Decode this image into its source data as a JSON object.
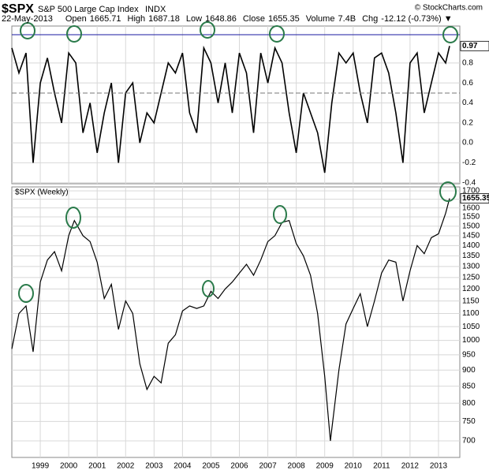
{
  "header": {
    "symbol": "$SPX",
    "name": "S&P 500 Large Cap Index",
    "exchange": "INDX",
    "date": "22-May-2013",
    "credit": "© StockCharts.com",
    "fields": [
      {
        "label": "Open",
        "value": 1665.71
      },
      {
        "label": "High",
        "value": 1687.18
      },
      {
        "label": "Low",
        "value": 1648.86
      },
      {
        "label": "Close",
        "value": 1655.35
      },
      {
        "label": "Volume",
        "value": "7.4B"
      },
      {
        "label": "Chg",
        "value": "-12.12 (-0.73%) ▼"
      }
    ]
  },
  "chart_data": [
    {
      "type": "line",
      "color": "#000000",
      "grid": true,
      "x": [
        1998.0,
        1998.25,
        1998.5,
        1998.75,
        1999.0,
        1999.25,
        1999.5,
        1999.75,
        2000.0,
        2000.25,
        2000.5,
        2000.75,
        2001.0,
        2001.25,
        2001.5,
        2001.75,
        2002.0,
        2002.25,
        2002.5,
        2002.75,
        2003.0,
        2003.25,
        2003.5,
        2003.75,
        2004.0,
        2004.25,
        2004.5,
        2004.75,
        2005.0,
        2005.25,
        2005.5,
        2005.75,
        2006.0,
        2006.25,
        2006.5,
        2006.75,
        2007.0,
        2007.25,
        2007.5,
        2007.75,
        2008.0,
        2008.25,
        2008.5,
        2008.75,
        2009.0,
        2009.25,
        2009.5,
        2009.75,
        2010.0,
        2010.25,
        2010.5,
        2010.75,
        2011.0,
        2011.25,
        2011.5,
        2011.75,
        2012.0,
        2012.25,
        2012.5,
        2012.75,
        2013.0,
        2013.25,
        2013.39
      ],
      "values": [
        0.95,
        0.7,
        0.9,
        -0.2,
        0.6,
        0.85,
        0.5,
        0.2,
        0.9,
        0.8,
        0.1,
        0.4,
        -0.1,
        0.3,
        0.6,
        -0.2,
        0.5,
        0.6,
        0.0,
        0.3,
        0.2,
        0.5,
        0.8,
        0.7,
        0.9,
        0.3,
        0.1,
        0.95,
        0.8,
        0.4,
        0.8,
        0.3,
        0.9,
        0.7,
        0.1,
        0.9,
        0.6,
        0.95,
        0.8,
        0.3,
        -0.1,
        0.5,
        0.3,
        0.1,
        -0.3,
        0.4,
        0.9,
        0.8,
        0.9,
        0.5,
        0.2,
        0.85,
        0.9,
        0.7,
        0.3,
        -0.2,
        0.8,
        0.9,
        0.3,
        0.6,
        0.9,
        0.8,
        0.97
      ],
      "xlim": [
        1998.0,
        2013.75
      ],
      "xticks": [
        1999,
        2000,
        2001,
        2002,
        2003,
        2004,
        2005,
        2006,
        2007,
        2008,
        2009,
        2010,
        2011,
        2012,
        2013
      ],
      "ylim": [
        -0.41,
        1.17
      ],
      "yticks": [
        -0.4,
        -0.2,
        {
          "value": 0,
          "label": "0.0"
        },
        0.2,
        0.4,
        0.6,
        0.8
      ]
    },
    {
      "type": "line",
      "title": "$SPX (Weekly)",
      "color": "#000000",
      "grid": true,
      "log_scale": true,
      "x": [
        1998.0,
        1998.25,
        1998.5,
        1998.75,
        1999.0,
        1999.25,
        1999.5,
        1999.75,
        2000.0,
        2000.2,
        2000.5,
        2000.75,
        2001.0,
        2001.25,
        2001.5,
        2001.75,
        2002.0,
        2002.25,
        2002.5,
        2002.75,
        2003.0,
        2003.25,
        2003.5,
        2003.75,
        2004.0,
        2004.25,
        2004.5,
        2004.75,
        2005.0,
        2005.25,
        2005.5,
        2005.75,
        2006.0,
        2006.25,
        2006.5,
        2006.75,
        2007.0,
        2007.25,
        2007.5,
        2007.75,
        2008.0,
        2008.25,
        2008.5,
        2008.75,
        2009.0,
        2009.2,
        2009.5,
        2009.75,
        2010.0,
        2010.25,
        2010.5,
        2010.75,
        2011.0,
        2011.25,
        2011.5,
        2011.75,
        2012.0,
        2012.25,
        2012.5,
        2012.75,
        2013.0,
        2013.25,
        2013.39
      ],
      "values": [
        970,
        1100,
        1130,
        960,
        1230,
        1330,
        1370,
        1280,
        1450,
        1530,
        1450,
        1420,
        1320,
        1160,
        1220,
        1040,
        1150,
        1100,
        920,
        840,
        880,
        860,
        990,
        1020,
        1110,
        1130,
        1120,
        1130,
        1190,
        1160,
        1200,
        1230,
        1270,
        1310,
        1260,
        1330,
        1420,
        1450,
        1520,
        1530,
        1410,
        1350,
        1260,
        1100,
        880,
        700,
        900,
        1060,
        1120,
        1180,
        1050,
        1150,
        1270,
        1330,
        1320,
        1150,
        1280,
        1400,
        1360,
        1440,
        1460,
        1570,
        1655.35
      ],
      "xlim": [
        1998.0,
        2013.75
      ],
      "xticks": [
        1999,
        2000,
        2001,
        2002,
        2003,
        2004,
        2005,
        2006,
        2007,
        2008,
        2009,
        2010,
        2011,
        2012,
        2013
      ],
      "ylim": [
        660,
        1724
      ],
      "yticks": [
        700,
        750,
        800,
        850,
        900,
        950,
        1000,
        1050,
        1100,
        1150,
        1200,
        1250,
        1300,
        1350,
        1400,
        1450,
        1500,
        1550,
        1600,
        1650,
        1700
      ]
    }
  ]
}
